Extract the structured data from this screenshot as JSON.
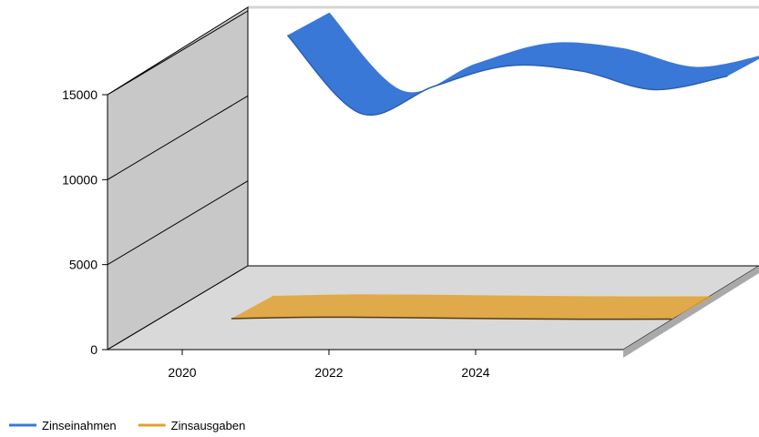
{
  "chart_data": {
    "type": "area",
    "style": "3d-ribbon",
    "x_ticks": [
      2020,
      2022,
      2024
    ],
    "y_ticks": [
      0,
      5000,
      10000,
      15000
    ],
    "ylim": [
      0,
      15000
    ],
    "grid": false,
    "legend_position": "bottom-left",
    "series": [
      {
        "name": "Zinseinahmen",
        "color": "#3a78d8",
        "x": [
          2020,
          2021,
          2022,
          2023,
          2024,
          2025,
          2026
        ],
        "values": [
          14800,
          10200,
          11800,
          13000,
          12700,
          11600,
          12400
        ]
      },
      {
        "name": "Zinsausgaben",
        "color": "#e0a030",
        "x": [
          2020,
          2021,
          2022,
          2023,
          2024,
          2025,
          2026
        ],
        "values": [
          100,
          180,
          170,
          120,
          80,
          60,
          70
        ]
      }
    ]
  }
}
